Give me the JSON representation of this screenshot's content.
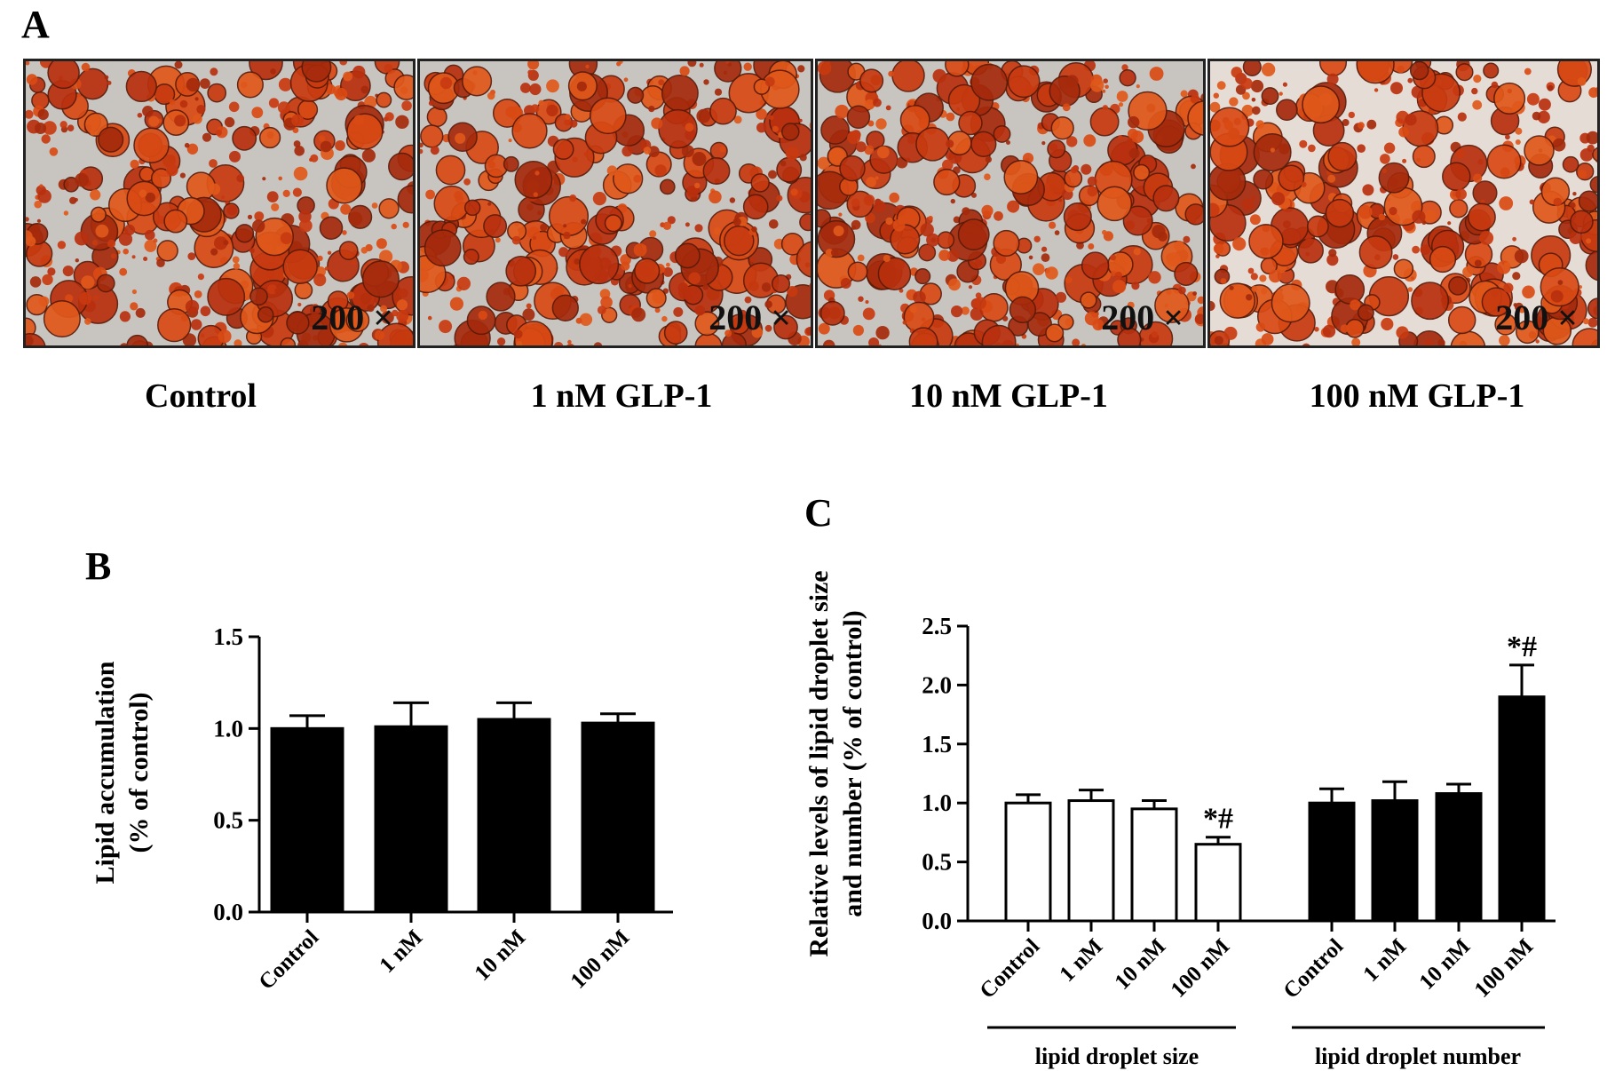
{
  "panel_a": {
    "letter": "A",
    "images": [
      {
        "magnification": "200 ×",
        "condition": "Control"
      },
      {
        "magnification": "200 ×",
        "condition": "1 nM GLP-1"
      },
      {
        "magnification": "200 ×",
        "condition": "10 nM GLP-1"
      },
      {
        "magnification": "200 ×",
        "condition": "100 nM GLP-1"
      }
    ]
  },
  "chart_data": [
    {
      "panel": "B",
      "type": "bar",
      "ylabel_line1": "Lipid accumulation",
      "ylabel_line2": "(% of control)",
      "categories": [
        "Control",
        "1 nM",
        "10 nM",
        "100 nM"
      ],
      "values": [
        1.0,
        1.01,
        1.05,
        1.03
      ],
      "errors": [
        0.07,
        0.13,
        0.09,
        0.05
      ],
      "ylim": [
        0,
        1.5
      ],
      "yticks": [
        "0.0",
        "0.5",
        "1.0",
        "1.5"
      ],
      "bar_color": "#000000"
    },
    {
      "panel": "C",
      "type": "bar",
      "ylabel_line1": "Relative levels of lipid droplet size",
      "ylabel_line2": "and number (% of control)",
      "ylim": [
        0,
        2.5
      ],
      "yticks": [
        "0.0",
        "0.5",
        "1.0",
        "1.5",
        "2.0",
        "2.5"
      ],
      "groups": [
        {
          "name": "lipid droplet size",
          "categories": [
            "Control",
            "1 nM",
            "10 nM",
            "100 nM"
          ],
          "values": [
            1.0,
            1.02,
            0.95,
            0.65
          ],
          "errors": [
            0.07,
            0.09,
            0.07,
            0.06
          ],
          "annotations": [
            "",
            "",
            "",
            "*#"
          ],
          "fill": "#ffffff"
        },
        {
          "name": "lipid droplet number",
          "categories": [
            "Control",
            "1 nM",
            "10 nM",
            "100 nM"
          ],
          "values": [
            1.0,
            1.02,
            1.08,
            1.9
          ],
          "errors": [
            0.12,
            0.16,
            0.08,
            0.27
          ],
          "annotations": [
            "",
            "",
            "",
            "*#"
          ],
          "fill": "#000000"
        }
      ]
    }
  ]
}
